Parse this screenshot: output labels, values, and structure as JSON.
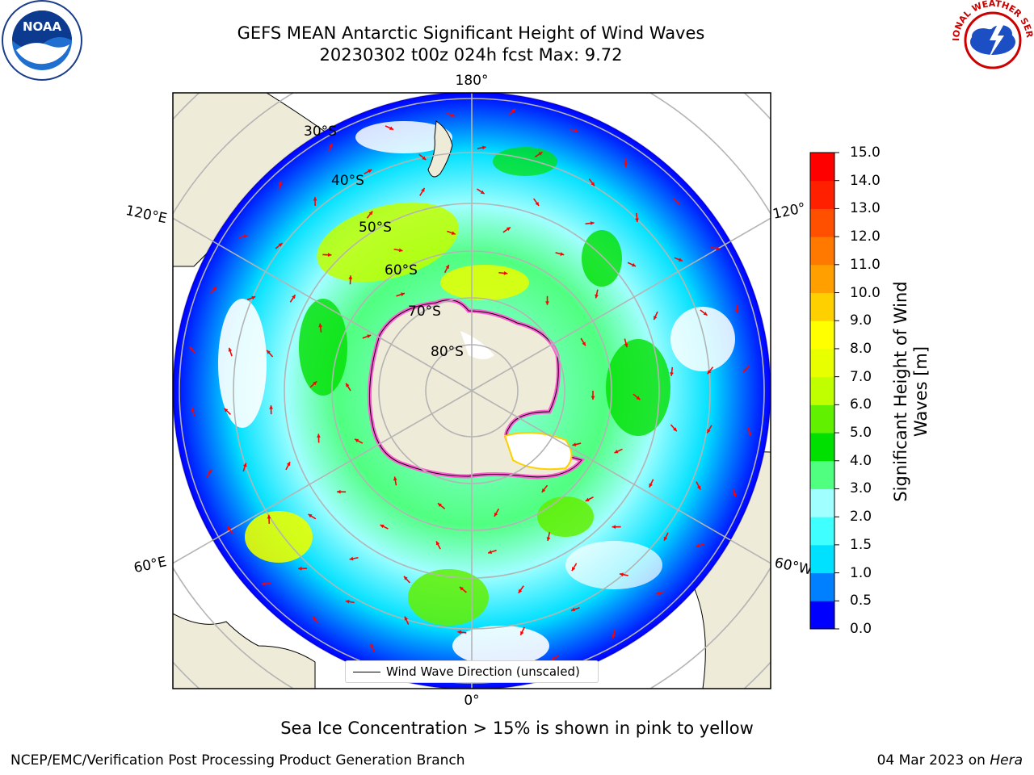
{
  "header": {
    "title_line1": "GEFS MEAN Antarctic Significant Height of Wind Waves",
    "title_line2": "20230302 t00z 024h fcst   Max: 9.72"
  },
  "map": {
    "longitude_labels": {
      "top": "180°",
      "bottom": "0°",
      "left_upper": "120°E",
      "left_lower": "60°E",
      "right_upper": "120°",
      "right_lower": "60°W"
    },
    "latitude_labels": [
      "30°S",
      "40°S",
      "50°S",
      "60°S",
      "70°S",
      "80°S"
    ],
    "legend_text": "Wind Wave Direction (unscaled)",
    "ocean_wave_color": "#00ffff",
    "land_color": "#efebd9",
    "sea_ice_color": "#ff5fd5",
    "arrow_color": "#ff0000"
  },
  "colorbar": {
    "title_line1": "Significant Height of Wind",
    "title_line2": "Waves [m]",
    "ticks": [
      "0.0",
      "0.5",
      "1.0",
      "1.5",
      "2.0",
      "3.0",
      "4.0",
      "5.0",
      "6.0",
      "7.0",
      "8.0",
      "9.0",
      "10.0",
      "11.0",
      "12.0",
      "13.0",
      "14.0",
      "15.0"
    ],
    "colors": [
      "#0000ff",
      "#0080ff",
      "#00e0ff",
      "#40ffff",
      "#a0ffff",
      "#50ff80",
      "#00e000",
      "#60f000",
      "#c0ff00",
      "#e8ff00",
      "#ffff00",
      "#ffd000",
      "#ffa000",
      "#ff7800",
      "#ff5000",
      "#ff2000",
      "#ff0000"
    ]
  },
  "caption": "Sea Ice Concentration > 15% is shown in pink to yellow",
  "footer": {
    "left": "NCEP/EMC/Verification Post Processing Product Generation Branch",
    "right_prefix": "04 Mar 2023 on ",
    "right_host": "Hera"
  },
  "logos": {
    "noaa_text": "NOAA",
    "nws_text": "NATIONAL WEATHER SERVICE"
  }
}
